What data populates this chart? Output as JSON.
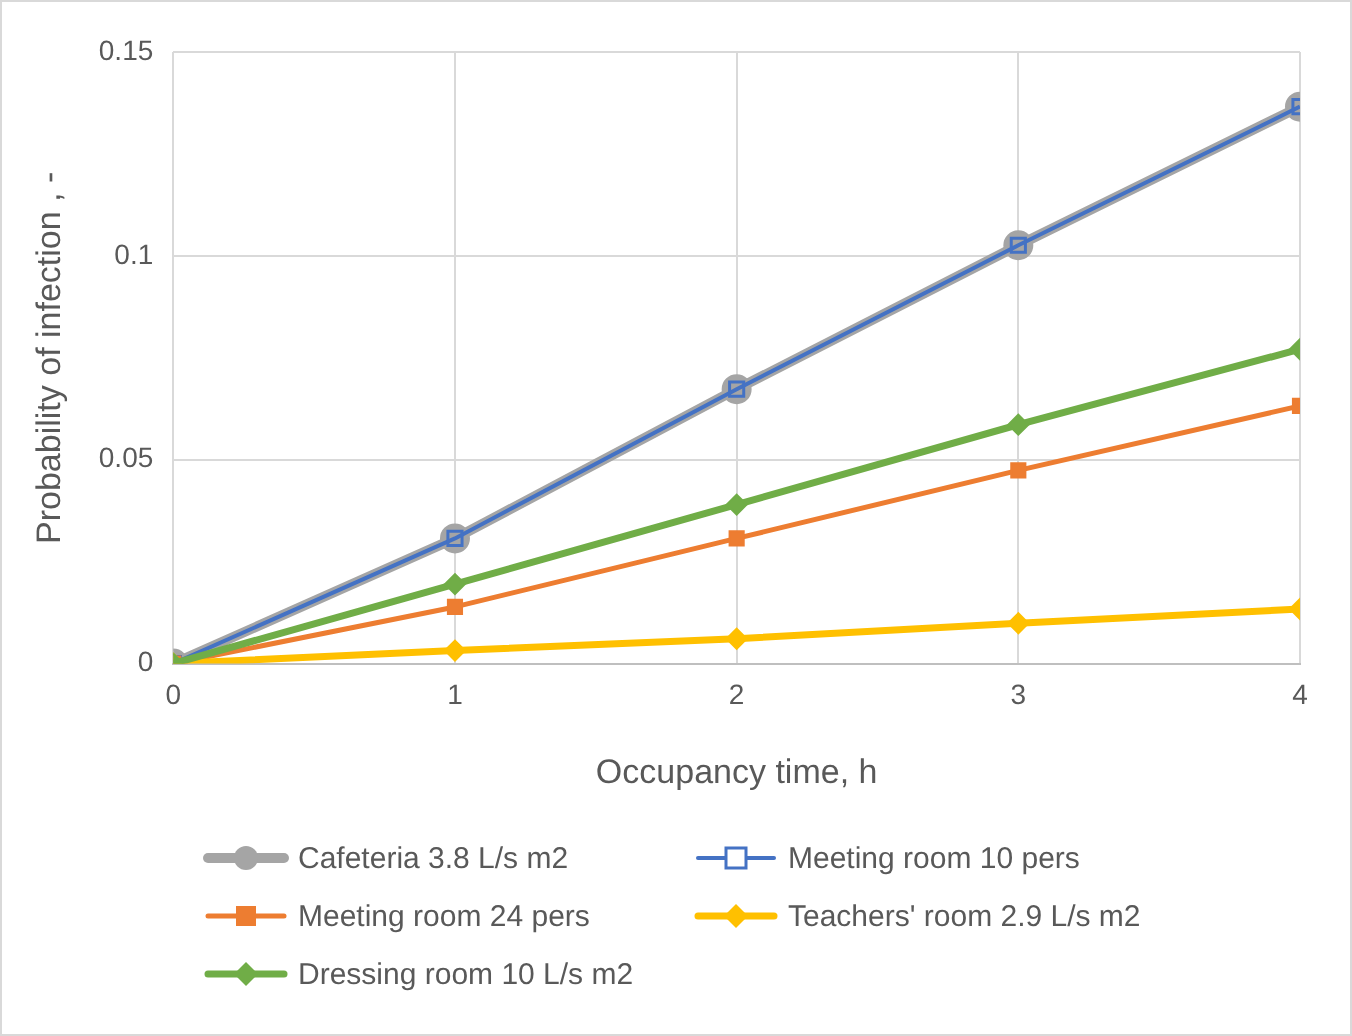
{
  "chart_data": {
    "type": "line",
    "xlabel": "Occupancy time, h",
    "ylabel": "Probability of infection , -",
    "x": [
      0,
      1,
      2,
      3,
      4
    ],
    "xlim": [
      0,
      4
    ],
    "xticks": [
      0,
      1,
      2,
      3,
      4
    ],
    "ylim": [
      0,
      0.15
    ],
    "yticks": [
      0,
      0.05,
      0.1,
      0.15
    ],
    "grid": true,
    "legend": "bottom",
    "series": [
      {
        "name": "Cafeteria 3.8 L/s m2",
        "color": "#a5a5a5",
        "marker": "circle",
        "values": [
          0,
          0.0307,
          0.0673,
          0.1026,
          0.1366
        ]
      },
      {
        "name": "Meeting room 10 pers",
        "color": "#4472c4",
        "marker": "square",
        "values": [
          0,
          0.0307,
          0.0673,
          0.1026,
          0.1366
        ]
      },
      {
        "name": "Meeting room 24 pers",
        "color": "#ed7d31",
        "marker": "square",
        "values": [
          0,
          0.0139,
          0.0307,
          0.0474,
          0.0632
        ]
      },
      {
        "name": "Teachers' room 2.9 L/s m2",
        "color": "#ffc000",
        "marker": "diamond",
        "values": [
          0,
          0.0032,
          0.0061,
          0.0099,
          0.0134
        ]
      },
      {
        "name": "Dressing room 10 L/s m2",
        "color": "#70ad47",
        "marker": "diamond",
        "values": [
          0,
          0.0195,
          0.039,
          0.0586,
          0.0771
        ]
      }
    ]
  }
}
